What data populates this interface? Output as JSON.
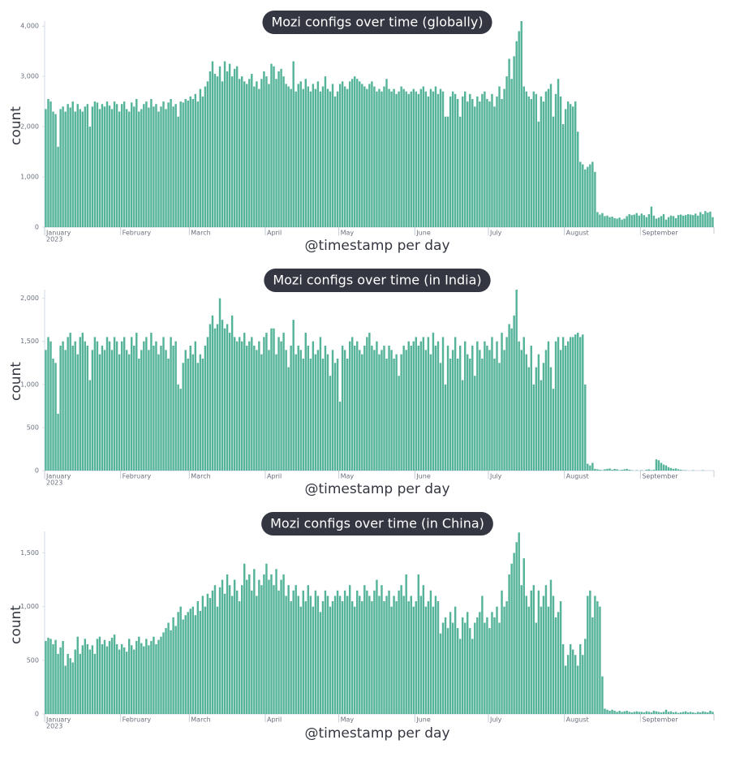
{
  "chart_data": [
    {
      "type": "bar",
      "title": "Mozi configs over time (globally)",
      "xlabel": "@timestamp per day",
      "ylabel": "count",
      "color": "#54b399",
      "x_start": "2023-01-01",
      "x_step_days": 1,
      "xlim": [
        "2023-01-01",
        "2023-10-01"
      ],
      "xticks": [
        {
          "value": "2023-01-01",
          "label": "January"
        },
        {
          "value": "2023-02-01",
          "label": "February"
        },
        {
          "value": "2023-03-01",
          "label": "March"
        },
        {
          "value": "2023-04-01",
          "label": "April"
        },
        {
          "value": "2023-05-01",
          "label": "May"
        },
        {
          "value": "2023-06-01",
          "label": "June"
        },
        {
          "value": "2023-07-01",
          "label": "July"
        },
        {
          "value": "2023-08-01",
          "label": "August"
        },
        {
          "value": "2023-09-01",
          "label": "September"
        }
      ],
      "x_sublabel": "2023",
      "ylim": [
        0,
        4100
      ],
      "yticks": [
        0,
        {
          "value": 1000,
          "label": "1,000"
        },
        {
          "value": 2000,
          "label": "2,000"
        },
        {
          "value": 3000,
          "label": "3,000"
        },
        {
          "value": 4000,
          "label": "4,000"
        }
      ],
      "values": [
        2350,
        2550,
        2500,
        2300,
        2250,
        1600,
        2350,
        2400,
        2300,
        2450,
        2380,
        2500,
        2300,
        2450,
        2350,
        2300,
        2400,
        2450,
        2000,
        2400,
        2500,
        2480,
        2350,
        2450,
        2400,
        2500,
        2420,
        2350,
        2500,
        2450,
        2300,
        2450,
        2500,
        2350,
        2300,
        2480,
        2400,
        2550,
        2300,
        2350,
        2450,
        2500,
        2380,
        2550,
        2400,
        2450,
        2300,
        2400,
        2500,
        2350,
        2480,
        2550,
        2400,
        2450,
        2200,
        2500,
        2480,
        2550,
        2520,
        2600,
        2550,
        2650,
        2500,
        2750,
        2600,
        2800,
        2900,
        3100,
        3300,
        3050,
        3000,
        3200,
        2900,
        3300,
        3100,
        3250,
        3000,
        3150,
        3200,
        2950,
        3000,
        2900,
        2850,
        2950,
        3050,
        2800,
        2900,
        2750,
        2950,
        3100,
        3000,
        2850,
        3250,
        3200,
        2950,
        3100,
        3150,
        3000,
        2850,
        2800,
        2750,
        3300,
        2700,
        2850,
        2900,
        2750,
        2950,
        2800,
        2700,
        2850,
        2750,
        2900,
        2700,
        2800,
        3000,
        2750,
        2700,
        2850,
        2600,
        2700,
        2850,
        2900,
        2800,
        2750,
        2900,
        2950,
        3000,
        2950,
        2900,
        2850,
        2800,
        2750,
        2850,
        2900,
        2800,
        2700,
        2750,
        2700,
        2800,
        2950,
        2750,
        2700,
        2750,
        2650,
        2700,
        2800,
        2750,
        2700,
        2650,
        2700,
        2750,
        2700,
        2650,
        2750,
        2800,
        2700,
        2600,
        2750,
        2700,
        2800,
        2650,
        2750,
        2700,
        2200,
        2200,
        2600,
        2700,
        2650,
        2550,
        2200,
        2600,
        2700,
        2500,
        2650,
        2550,
        2400,
        2600,
        2500,
        2650,
        2700,
        2550,
        2500,
        2650,
        2400,
        2600,
        2800,
        2550,
        2750,
        3000,
        3350,
        2950,
        3400,
        3700,
        3900,
        4100,
        2800,
        2700,
        2600,
        2550,
        2700,
        2650,
        2100,
        2600,
        2500,
        2700,
        2750,
        2850,
        2200,
        2650,
        2950,
        2600,
        2050,
        2350,
        2500,
        2450,
        2400,
        2500,
        1900,
        1300,
        1250,
        1150,
        1200,
        1250,
        1300,
        1100,
        300,
        250,
        280,
        220,
        230,
        200,
        210,
        180,
        170,
        190,
        150,
        170,
        220,
        260,
        240,
        250,
        280,
        230,
        270,
        240,
        200,
        260,
        410,
        230,
        170,
        190,
        220,
        260,
        150,
        200,
        230,
        220,
        180,
        240,
        250,
        230,
        240,
        260,
        250,
        240,
        270,
        230,
        300,
        260,
        320,
        290,
        310,
        200
      ]
    },
    {
      "type": "bar",
      "title": "Mozi configs over time (in India)",
      "xlabel": "@timestamp per day",
      "ylabel": "count",
      "color": "#54b399",
      "x_start": "2023-01-01",
      "x_step_days": 1,
      "xlim": [
        "2023-01-01",
        "2023-10-01"
      ],
      "xticks": [
        {
          "value": "2023-01-01",
          "label": "January"
        },
        {
          "value": "2023-02-01",
          "label": "February"
        },
        {
          "value": "2023-03-01",
          "label": "March"
        },
        {
          "value": "2023-04-01",
          "label": "April"
        },
        {
          "value": "2023-05-01",
          "label": "May"
        },
        {
          "value": "2023-06-01",
          "label": "June"
        },
        {
          "value": "2023-07-01",
          "label": "July"
        },
        {
          "value": "2023-08-01",
          "label": "August"
        },
        {
          "value": "2023-09-01",
          "label": "September"
        }
      ],
      "x_sublabel": "2023",
      "ylim": [
        0,
        2100
      ],
      "yticks": [
        0,
        500,
        {
          "value": 1000,
          "label": "1,000"
        },
        {
          "value": 1500,
          "label": "1,500"
        },
        {
          "value": 2000,
          "label": "2,000"
        }
      ],
      "values": [
        1400,
        1550,
        1500,
        1300,
        1250,
        660,
        1450,
        1500,
        1400,
        1550,
        1600,
        1450,
        1500,
        1350,
        1550,
        1600,
        1500,
        1450,
        1050,
        1400,
        1550,
        1500,
        1350,
        1450,
        1400,
        1550,
        1500,
        1400,
        1550,
        1500,
        1350,
        1500,
        1550,
        1400,
        1350,
        1550,
        1450,
        1600,
        1300,
        1400,
        1500,
        1550,
        1400,
        1600,
        1450,
        1500,
        1350,
        1450,
        1550,
        1400,
        1300,
        1550,
        1450,
        1500,
        1000,
        950,
        1250,
        1400,
        1300,
        1450,
        1350,
        1500,
        1250,
        1350,
        1300,
        1450,
        1550,
        1700,
        1800,
        1650,
        1700,
        2000,
        1750,
        1650,
        1700,
        1600,
        1800,
        1550,
        1500,
        1550,
        1500,
        1600,
        1450,
        1500,
        1550,
        1450,
        1400,
        1500,
        1350,
        1550,
        1600,
        1400,
        1650,
        1650,
        1350,
        1550,
        1500,
        1600,
        1400,
        1200,
        1450,
        1750,
        1350,
        1450,
        1400,
        1300,
        1600,
        1450,
        1300,
        1500,
        1350,
        1400,
        1550,
        1300,
        1450,
        1350,
        1100,
        1400,
        1250,
        1300,
        800,
        1450,
        1400,
        1300,
        1500,
        1550,
        1450,
        1500,
        1400,
        1350,
        1450,
        1550,
        1600,
        1450,
        1400,
        1500,
        1350,
        1400,
        1450,
        1300,
        1450,
        1400,
        1300,
        1350,
        1100,
        1350,
        1450,
        1400,
        1500,
        1450,
        1500,
        1550,
        1450,
        1500,
        1550,
        1400,
        1550,
        1350,
        1600,
        1450,
        1500,
        1250,
        1550,
        1000,
        1450,
        1300,
        1400,
        1550,
        1300,
        1450,
        1050,
        1500,
        1350,
        1300,
        1450,
        1100,
        1500,
        1400,
        1300,
        1500,
        1450,
        1400,
        1550,
        1300,
        1500,
        1250,
        1600,
        1400,
        1550,
        1700,
        1650,
        1800,
        2100,
        1500,
        1400,
        1550,
        1350,
        1200,
        1450,
        1000,
        1200,
        1350,
        1050,
        1250,
        1400,
        1500,
        1200,
        950,
        1500,
        1550,
        1400,
        1550,
        1450,
        1500,
        1550,
        1550,
        1580,
        1600,
        1550,
        1580,
        1000,
        80,
        60,
        90,
        20,
        15,
        10,
        5,
        15,
        20,
        25,
        10,
        20,
        15,
        5,
        10,
        15,
        20,
        10,
        5,
        0,
        5,
        0,
        5,
        0,
        10,
        15,
        5,
        10,
        130,
        120,
        90,
        70,
        60,
        40,
        30,
        20,
        25,
        15,
        10,
        5,
        5,
        0,
        0,
        5,
        0,
        0,
        0,
        5,
        0,
        0,
        0,
        0
      ]
    },
    {
      "type": "bar",
      "title": "Mozi configs over time (in China)",
      "xlabel": "@timestamp per day",
      "ylabel": "count",
      "color": "#54b399",
      "x_start": "2023-01-01",
      "x_step_days": 1,
      "xlim": [
        "2023-01-01",
        "2023-10-01"
      ],
      "xticks": [
        {
          "value": "2023-01-01",
          "label": "January"
        },
        {
          "value": "2023-02-01",
          "label": "February"
        },
        {
          "value": "2023-03-01",
          "label": "March"
        },
        {
          "value": "2023-04-01",
          "label": "April"
        },
        {
          "value": "2023-05-01",
          "label": "May"
        },
        {
          "value": "2023-06-01",
          "label": "June"
        },
        {
          "value": "2023-07-01",
          "label": "July"
        },
        {
          "value": "2023-08-01",
          "label": "August"
        },
        {
          "value": "2023-09-01",
          "label": "September"
        }
      ],
      "x_sublabel": "2023",
      "ylim": [
        0,
        1700
      ],
      "yticks": [
        0,
        500,
        {
          "value": 1000,
          "label": "1,000"
        },
        {
          "value": 1500,
          "label": "1,500"
        }
      ],
      "values": [
        680,
        710,
        700,
        650,
        690,
        560,
        620,
        680,
        450,
        560,
        520,
        480,
        600,
        720,
        560,
        640,
        700,
        650,
        600,
        640,
        560,
        700,
        720,
        650,
        690,
        630,
        680,
        710,
        740,
        650,
        600,
        650,
        620,
        580,
        700,
        640,
        600,
        680,
        720,
        660,
        630,
        700,
        640,
        680,
        720,
        650,
        690,
        720,
        760,
        800,
        850,
        780,
        900,
        820,
        950,
        1000,
        880,
        920,
        950,
        980,
        1000,
        920,
        1050,
        960,
        1100,
        1000,
        1120,
        1080,
        1150,
        1200,
        1000,
        1180,
        1250,
        1120,
        1300,
        1200,
        1100,
        1250,
        1150,
        1050,
        1200,
        1400,
        1250,
        1300,
        1150,
        1350,
        1100,
        1250,
        1200,
        1300,
        1400,
        1250,
        1300,
        1200,
        1350,
        1150,
        1250,
        1300,
        1100,
        1200,
        1050,
        1150,
        1200,
        1100,
        1000,
        1150,
        1050,
        1200,
        1100,
        1000,
        1150,
        1100,
        950,
        1050,
        1150,
        1100,
        1000,
        1050,
        1100,
        1150,
        1100,
        1050,
        1150,
        1100,
        1200,
        1050,
        1000,
        1150,
        1100,
        1050,
        1200,
        1150,
        1100,
        1050,
        1150,
        1250,
        1100,
        1200,
        1050,
        1100,
        1150,
        1000,
        1100,
        1050,
        1150,
        1200,
        1100,
        1300,
        1050,
        1100,
        1000,
        1050,
        1300,
        1100,
        1200,
        1000,
        1050,
        1150,
        1000,
        1100,
        1050,
        750,
        850,
        900,
        800,
        950,
        850,
        1000,
        800,
        700,
        900,
        850,
        950,
        800,
        700,
        850,
        900,
        950,
        1100,
        850,
        900,
        800,
        950,
        900,
        1000,
        850,
        1150,
        1000,
        1050,
        1300,
        1400,
        1500,
        1600,
        1690,
        1200,
        1450,
        1100,
        1000,
        1150,
        1200,
        850,
        1150,
        1000,
        1100,
        1200,
        1000,
        1250,
        1100,
        900,
        950,
        1050,
        650,
        450,
        550,
        650,
        600,
        550,
        450,
        650,
        550,
        700,
        1100,
        1150,
        900,
        1100,
        1050,
        1000,
        350,
        50,
        40,
        30,
        40,
        30,
        20,
        30,
        20,
        25,
        30,
        20,
        15,
        20,
        25,
        20,
        20,
        15,
        25,
        20,
        15,
        30,
        25,
        20,
        15,
        20,
        40,
        20,
        25,
        15,
        20,
        10,
        15,
        20,
        25,
        15,
        20,
        15,
        10,
        20,
        15,
        25,
        20,
        15,
        30,
        20
      ]
    }
  ]
}
